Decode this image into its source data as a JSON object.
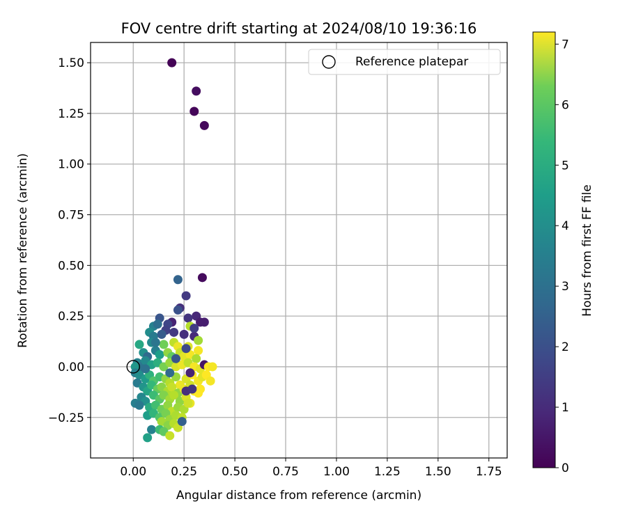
{
  "chart_data": {
    "type": "scatter",
    "title": "FOV centre drift starting at 2024/08/10 19:36:16",
    "xlabel": "Angular distance from reference (arcmin)",
    "ylabel": "Rotation from reference (arcmin)",
    "xlim": [
      -0.21,
      1.84
    ],
    "ylim": [
      -0.45,
      1.6
    ],
    "xticks": [
      0.0,
      0.25,
      0.5,
      0.75,
      1.0,
      1.25,
      1.5,
      1.75
    ],
    "xtick_labels": [
      "0.00",
      "0.25",
      "0.50",
      "0.75",
      "1.00",
      "1.25",
      "1.50",
      "1.75"
    ],
    "yticks": [
      -0.25,
      0.0,
      0.25,
      0.5,
      0.75,
      1.0,
      1.25,
      1.5
    ],
    "ytick_labels": [
      "−0.25",
      "0.00",
      "0.25",
      "0.50",
      "0.75",
      "1.00",
      "1.25",
      "1.50"
    ],
    "grid": true,
    "legend": {
      "placement": "top-right",
      "entries": [
        {
          "label": "Reference platepar",
          "marker": "open-circle"
        }
      ]
    },
    "reference_point": {
      "x": 0.0,
      "y": 0.0
    },
    "colorbar": {
      "label": "Hours from first FF file",
      "range": [
        0,
        7.2
      ],
      "ticks": [
        0,
        1,
        2,
        3,
        4,
        5,
        6,
        7
      ],
      "tick_labels": [
        "0",
        "1",
        "2",
        "3",
        "4",
        "5",
        "6",
        "7"
      ],
      "colormap": "viridis"
    },
    "points": [
      {
        "x": 0.19,
        "y": 1.5,
        "c": 0.05
      },
      {
        "x": 0.31,
        "y": 1.36,
        "c": 0.25
      },
      {
        "x": 0.3,
        "y": 1.26,
        "c": 0.1
      },
      {
        "x": 0.35,
        "y": 1.19,
        "c": 0.15
      },
      {
        "x": 0.34,
        "y": 0.44,
        "c": 0.2
      },
      {
        "x": 0.22,
        "y": 0.43,
        "c": 2.3
      },
      {
        "x": 0.26,
        "y": 0.35,
        "c": 1.2
      },
      {
        "x": 0.23,
        "y": 0.29,
        "c": 1.0
      },
      {
        "x": 0.22,
        "y": 0.28,
        "c": 1.8
      },
      {
        "x": 0.31,
        "y": 0.25,
        "c": 0.8
      },
      {
        "x": 0.33,
        "y": 0.22,
        "c": 0.6
      },
      {
        "x": 0.27,
        "y": 0.24,
        "c": 1.1
      },
      {
        "x": 0.19,
        "y": 0.22,
        "c": 0.7
      },
      {
        "x": 0.13,
        "y": 0.24,
        "c": 1.9
      },
      {
        "x": 0.1,
        "y": 0.2,
        "c": 3.2
      },
      {
        "x": 0.12,
        "y": 0.21,
        "c": 2.6
      },
      {
        "x": 0.17,
        "y": 0.21,
        "c": 1.5
      },
      {
        "x": 0.28,
        "y": 0.2,
        "c": 6.4
      },
      {
        "x": 0.16,
        "y": 0.18,
        "c": 1.4
      },
      {
        "x": 0.08,
        "y": 0.17,
        "c": 3.5
      },
      {
        "x": 0.1,
        "y": 0.15,
        "c": 3.0
      },
      {
        "x": 0.14,
        "y": 0.16,
        "c": 2.1
      },
      {
        "x": 0.2,
        "y": 0.17,
        "c": 1.2
      },
      {
        "x": 0.25,
        "y": 0.16,
        "c": 1.0
      },
      {
        "x": 0.3,
        "y": 0.15,
        "c": 0.9
      },
      {
        "x": 0.32,
        "y": 0.13,
        "c": 6.2
      },
      {
        "x": 0.03,
        "y": 0.11,
        "c": 4.3
      },
      {
        "x": 0.09,
        "y": 0.12,
        "c": 3.4
      },
      {
        "x": 0.15,
        "y": 0.11,
        "c": 5.6
      },
      {
        "x": 0.2,
        "y": 0.12,
        "c": 6.5
      },
      {
        "x": 0.22,
        "y": 0.1,
        "c": 7.0
      },
      {
        "x": 0.27,
        "y": 0.1,
        "c": 6.8
      },
      {
        "x": 0.32,
        "y": 0.08,
        "c": 7.1
      },
      {
        "x": 0.05,
        "y": 0.07,
        "c": 3.6
      },
      {
        "x": 0.07,
        "y": 0.05,
        "c": 2.5
      },
      {
        "x": 0.11,
        "y": 0.08,
        "c": 3.1
      },
      {
        "x": 0.13,
        "y": 0.06,
        "c": 4.0
      },
      {
        "x": 0.17,
        "y": 0.07,
        "c": 6.0
      },
      {
        "x": 0.19,
        "y": 0.05,
        "c": 5.4
      },
      {
        "x": 0.23,
        "y": 0.07,
        "c": 6.6
      },
      {
        "x": 0.25,
        "y": 0.05,
        "c": 6.9
      },
      {
        "x": 0.28,
        "y": 0.06,
        "c": 7.1
      },
      {
        "x": 0.31,
        "y": 0.04,
        "c": 6.3
      },
      {
        "x": 0.02,
        "y": 0.02,
        "c": 3.2
      },
      {
        "x": 0.04,
        "y": 0.0,
        "c": 2.8
      },
      {
        "x": 0.06,
        "y": 0.03,
        "c": 3.4
      },
      {
        "x": 0.09,
        "y": 0.01,
        "c": 4.1
      },
      {
        "x": 0.12,
        "y": 0.02,
        "c": 4.5
      },
      {
        "x": 0.15,
        "y": 0.0,
        "c": 5.7
      },
      {
        "x": 0.18,
        "y": 0.02,
        "c": 6.1
      },
      {
        "x": 0.21,
        "y": 0.0,
        "c": 6.8
      },
      {
        "x": 0.24,
        "y": 0.01,
        "c": 7.0
      },
      {
        "x": 0.27,
        "y": 0.02,
        "c": 6.5
      },
      {
        "x": 0.3,
        "y": 0.0,
        "c": 7.1
      },
      {
        "x": 0.33,
        "y": -0.01,
        "c": 6.9
      },
      {
        "x": 0.35,
        "y": 0.01,
        "c": 0.4
      },
      {
        "x": 0.37,
        "y": 0.0,
        "c": 7.2
      },
      {
        "x": 0.39,
        "y": 0.0,
        "c": 7.1
      },
      {
        "x": 0.01,
        "y": 0.0,
        "c": 3.8
      },
      {
        "x": 0.01,
        "y": -0.03,
        "c": 3.1
      },
      {
        "x": 0.03,
        "y": -0.04,
        "c": 3.5
      },
      {
        "x": 0.06,
        "y": -0.06,
        "c": 3.9
      },
      {
        "x": 0.08,
        "y": -0.04,
        "c": 4.6
      },
      {
        "x": 0.1,
        "y": -0.07,
        "c": 5.2
      },
      {
        "x": 0.13,
        "y": -0.05,
        "c": 5.0
      },
      {
        "x": 0.16,
        "y": -0.06,
        "c": 6.0
      },
      {
        "x": 0.18,
        "y": -0.08,
        "c": 6.4
      },
      {
        "x": 0.21,
        "y": -0.05,
        "c": 6.1
      },
      {
        "x": 0.23,
        "y": -0.09,
        "c": 7.0
      },
      {
        "x": 0.26,
        "y": -0.06,
        "c": 6.8
      },
      {
        "x": 0.29,
        "y": -0.04,
        "c": 7.2
      },
      {
        "x": 0.32,
        "y": -0.07,
        "c": 7.1
      },
      {
        "x": 0.34,
        "y": -0.05,
        "c": 6.9
      },
      {
        "x": 0.36,
        "y": -0.04,
        "c": 7.2
      },
      {
        "x": 0.38,
        "y": -0.07,
        "c": 7.1
      },
      {
        "x": 0.02,
        "y": -0.08,
        "c": 3.0
      },
      {
        "x": 0.05,
        "y": -0.1,
        "c": 3.7
      },
      {
        "x": 0.07,
        "y": -0.12,
        "c": 4.2
      },
      {
        "x": 0.09,
        "y": -0.09,
        "c": 4.8
      },
      {
        "x": 0.12,
        "y": -0.11,
        "c": 5.5
      },
      {
        "x": 0.14,
        "y": -0.1,
        "c": 5.9
      },
      {
        "x": 0.17,
        "y": -0.12,
        "c": 6.3
      },
      {
        "x": 0.19,
        "y": -0.1,
        "c": 6.6
      },
      {
        "x": 0.22,
        "y": -0.13,
        "c": 6.0
      },
      {
        "x": 0.25,
        "y": -0.11,
        "c": 7.0
      },
      {
        "x": 0.28,
        "y": -0.09,
        "c": 6.7
      },
      {
        "x": 0.3,
        "y": -0.12,
        "c": 7.1
      },
      {
        "x": 0.33,
        "y": -0.11,
        "c": 7.2
      },
      {
        "x": 0.04,
        "y": -0.15,
        "c": 3.3
      },
      {
        "x": 0.06,
        "y": -0.17,
        "c": 3.6
      },
      {
        "x": 0.1,
        "y": -0.14,
        "c": 4.9
      },
      {
        "x": 0.13,
        "y": -0.16,
        "c": 5.3
      },
      {
        "x": 0.15,
        "y": -0.14,
        "c": 5.8
      },
      {
        "x": 0.18,
        "y": -0.16,
        "c": 6.2
      },
      {
        "x": 0.2,
        "y": -0.14,
        "c": 6.4
      },
      {
        "x": 0.23,
        "y": -0.17,
        "c": 6.0
      },
      {
        "x": 0.26,
        "y": -0.15,
        "c": 6.8
      },
      {
        "x": 0.28,
        "y": -0.18,
        "c": 7.0
      },
      {
        "x": 0.32,
        "y": -0.13,
        "c": 7.2
      },
      {
        "x": 0.01,
        "y": -0.18,
        "c": 3.1
      },
      {
        "x": 0.03,
        "y": -0.19,
        "c": 2.9
      },
      {
        "x": 0.08,
        "y": -0.2,
        "c": 4.4
      },
      {
        "x": 0.11,
        "y": -0.19,
        "c": 5.0
      },
      {
        "x": 0.14,
        "y": -0.21,
        "c": 5.6
      },
      {
        "x": 0.17,
        "y": -0.19,
        "c": 6.0
      },
      {
        "x": 0.19,
        "y": -0.22,
        "c": 6.5
      },
      {
        "x": 0.22,
        "y": -0.2,
        "c": 6.1
      },
      {
        "x": 0.25,
        "y": -0.21,
        "c": 6.3
      },
      {
        "x": 0.27,
        "y": -0.18,
        "c": 6.7
      },
      {
        "x": 0.07,
        "y": -0.24,
        "c": 4.0
      },
      {
        "x": 0.1,
        "y": -0.23,
        "c": 4.7
      },
      {
        "x": 0.13,
        "y": -0.25,
        "c": 5.2
      },
      {
        "x": 0.16,
        "y": -0.23,
        "c": 5.7
      },
      {
        "x": 0.18,
        "y": -0.26,
        "c": 6.1
      },
      {
        "x": 0.21,
        "y": -0.24,
        "c": 6.3
      },
      {
        "x": 0.24,
        "y": -0.25,
        "c": 6.5
      },
      {
        "x": 0.14,
        "y": -0.27,
        "c": 6.2
      },
      {
        "x": 0.17,
        "y": -0.29,
        "c": 5.9
      },
      {
        "x": 0.2,
        "y": -0.28,
        "c": 6.4
      },
      {
        "x": 0.22,
        "y": -0.3,
        "c": 6.6
      },
      {
        "x": 0.09,
        "y": -0.31,
        "c": 3.2
      },
      {
        "x": 0.13,
        "y": -0.31,
        "c": 4.9
      },
      {
        "x": 0.15,
        "y": -0.32,
        "c": 5.4
      },
      {
        "x": 0.18,
        "y": -0.34,
        "c": 6.6
      },
      {
        "x": 0.07,
        "y": -0.35,
        "c": 4.1
      },
      {
        "x": 0.24,
        "y": -0.27,
        "c": 2.2
      },
      {
        "x": 0.26,
        "y": -0.12,
        "c": 1.0
      },
      {
        "x": 0.28,
        "y": -0.03,
        "c": 0.7
      },
      {
        "x": 0.3,
        "y": 0.19,
        "c": 1.3
      },
      {
        "x": 0.26,
        "y": 0.09,
        "c": 1.6
      },
      {
        "x": 0.29,
        "y": -0.11,
        "c": 1.1
      },
      {
        "x": 0.21,
        "y": 0.04,
        "c": 1.9
      },
      {
        "x": 0.18,
        "y": -0.03,
        "c": 2.5
      },
      {
        "x": 0.35,
        "y": 0.22,
        "c": 0.6
      },
      {
        "x": 0.11,
        "y": 0.12,
        "c": 2.8
      },
      {
        "x": 0.06,
        "y": -0.01,
        "c": 2.7
      }
    ]
  }
}
